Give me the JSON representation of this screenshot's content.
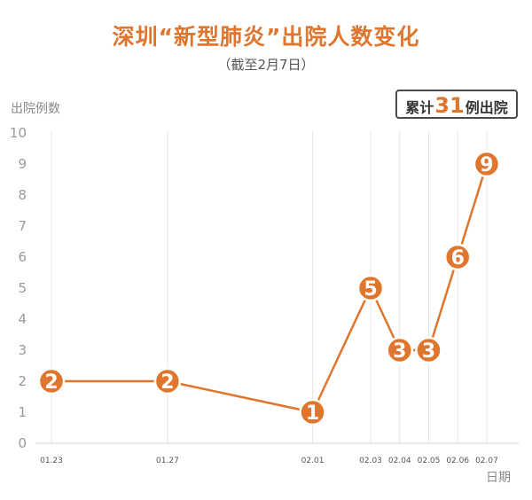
{
  "title": "深圳“新型肺炎”出院人数变化",
  "subtitle": "（截至2月7日）",
  "badge": {
    "prefix": "累计",
    "number": "31",
    "suffix": "例出院"
  },
  "colors": {
    "accent": "#e0762d",
    "grid": "#e6e6e6"
  },
  "chart_data": {
    "type": "line",
    "title": "深圳“新型肺炎”出院人数变化",
    "subtitle": "（截至2月7日）",
    "xlabel": "日期",
    "ylabel": "出院例数",
    "ylim": [
      0,
      10
    ],
    "yticks": [
      "0",
      "1",
      "2",
      "3",
      "4",
      "5",
      "6",
      "7",
      "8",
      "9",
      "10"
    ],
    "grid": "vertical",
    "x": [
      "01.23",
      "01.27",
      "02.01",
      "02.03",
      "02.04",
      "02.05",
      "02.06",
      "02.07"
    ],
    "x_days": [
      0,
      4,
      9,
      11,
      12,
      13,
      14,
      15
    ],
    "values": [
      2,
      2,
      1,
      5,
      3,
      3,
      6,
      9
    ],
    "point_labels": [
      "2",
      "2",
      "1",
      "5",
      "3",
      "3",
      "6",
      "9"
    ]
  }
}
